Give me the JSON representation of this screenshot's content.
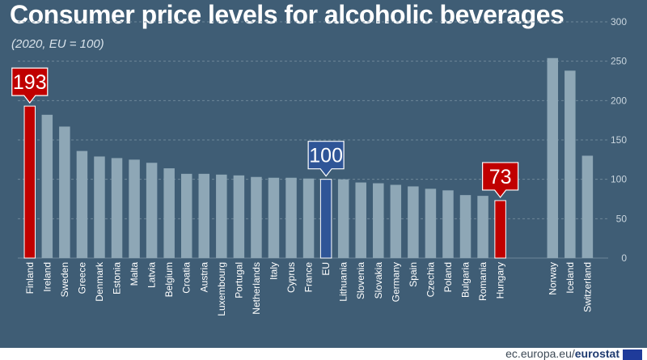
{
  "chart_data": {
    "type": "bar",
    "title": "Consumer price levels for alcoholic beverages",
    "subtitle": "(2020, EU = 100)",
    "categories": [
      "Finland",
      "Ireland",
      "Sweden",
      "Greece",
      "Denmark",
      "Estonia",
      "Malta",
      "Latvia",
      "Belgium",
      "Croatia",
      "Austria",
      "Luxembourg",
      "Portugal",
      "Netherlands",
      "Italy",
      "Cyprus",
      "France",
      "EU",
      "Lithuania",
      "Slovenia",
      "Slovakia",
      "Germany",
      "Spain",
      "Czechia",
      "Poland",
      "Bulgaria",
      "Romania",
      "Hungary",
      "Norway",
      "Iceland",
      "Switzerland"
    ],
    "values": [
      193,
      182,
      167,
      136,
      129,
      127,
      125,
      121,
      114,
      107,
      107,
      106,
      105,
      103,
      102,
      102,
      101,
      100,
      100,
      96,
      95,
      93,
      91,
      88,
      86,
      80,
      79,
      73,
      254,
      238,
      130
    ],
    "highlighted": {
      "Finland": "#c00000",
      "Hungary": "#c00000",
      "EU": "#2f5597"
    },
    "callouts": [
      {
        "category": "Finland",
        "text": "193",
        "color": "#c00000"
      },
      {
        "category": "EU",
        "text": "100",
        "color": "#2f5597"
      },
      {
        "category": "Hungary",
        "text": "73",
        "color": "#c00000"
      }
    ],
    "group_break_after": "Hungary",
    "ylim": [
      0,
      300
    ],
    "yticks": [
      0,
      50,
      100,
      150,
      200,
      250,
      300
    ],
    "grid": true,
    "bar_color": "#8ea7b6"
  },
  "footer": {
    "source": "ec.europa.eu/",
    "brand": "eurostat"
  },
  "colors": {
    "background": "#3f5d75",
    "gridline": "#6e8699",
    "text": "#ffffff"
  }
}
